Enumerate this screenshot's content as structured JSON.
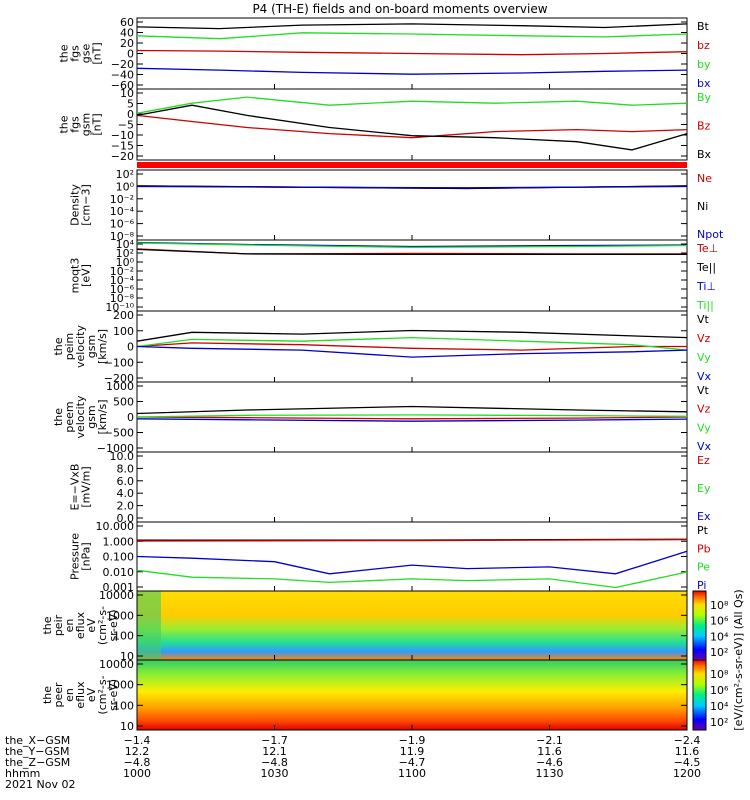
{
  "title": "P4 (TH-E) fields and on-board moments overview",
  "date": "2021 Nov 02",
  "colors": {
    "black": "#000000",
    "red": "#cc0000",
    "green": "#22dd22",
    "blue": "#0000cc"
  },
  "chart_data": [
    {
      "type": "line",
      "id": "p1",
      "ylabel": [
        "the",
        "fgs",
        "gse",
        "[nT]"
      ],
      "ylim": [
        -60,
        60
      ],
      "yticks": [
        "60",
        "40",
        "20",
        "0",
        "−20",
        "−40",
        "−60"
      ],
      "series": [
        {
          "name": "Bt",
          "color": "black",
          "x": [
            0,
            0.15,
            0.3,
            0.5,
            0.7,
            0.85,
            1
          ],
          "values": [
            45,
            42,
            48,
            50,
            47,
            44,
            50
          ]
        },
        {
          "name": "bz",
          "color": "red",
          "x": [
            0,
            0.15,
            0.3,
            0.5,
            0.7,
            0.85,
            1
          ],
          "values": [
            5,
            4,
            2,
            0,
            -2,
            0,
            3
          ]
        },
        {
          "name": "by",
          "color": "green",
          "x": [
            0,
            0.15,
            0.3,
            0.5,
            0.7,
            0.85,
            1
          ],
          "values": [
            30,
            25,
            35,
            33,
            30,
            28,
            33
          ]
        },
        {
          "name": "bx",
          "color": "blue",
          "x": [
            0,
            0.15,
            0.3,
            0.5,
            0.7,
            0.85,
            1
          ],
          "values": [
            -25,
            -28,
            -32,
            -35,
            -33,
            -30,
            -28
          ]
        }
      ]
    },
    {
      "type": "line",
      "id": "p2",
      "ylabel": [
        "the",
        "fgs",
        "gsm",
        "[nT]"
      ],
      "ylim": [
        -25,
        10
      ],
      "yticks": [
        "10",
        "5",
        "0",
        "−5",
        "−10",
        "−15",
        "−20"
      ],
      "series": [
        {
          "name": "By",
          "color": "green",
          "x": [
            0,
            0.1,
            0.2,
            0.35,
            0.5,
            0.65,
            0.8,
            0.9,
            1
          ],
          "values": [
            -2,
            3,
            6,
            2,
            4,
            3,
            4,
            2,
            3
          ]
        },
        {
          "name": "Bz",
          "color": "red",
          "x": [
            0,
            0.1,
            0.2,
            0.35,
            0.5,
            0.65,
            0.8,
            0.9,
            1
          ],
          "values": [
            -3,
            -6,
            -9,
            -12,
            -14,
            -11,
            -10,
            -11,
            -10
          ]
        },
        {
          "name": "Bx",
          "color": "black",
          "x": [
            0,
            0.1,
            0.2,
            0.35,
            0.5,
            0.65,
            0.8,
            0.9,
            1
          ],
          "values": [
            -3,
            2,
            -3,
            -9,
            -13,
            -14,
            -16,
            -20,
            -12
          ]
        }
      ]
    },
    {
      "type": "line",
      "id": "p3",
      "ylabel": [
        "Density",
        "[cm−3]"
      ],
      "log": true,
      "ylim": [
        -8,
        3
      ],
      "yticks": [
        "10²",
        "10⁰",
        "10⁻²",
        "10⁻⁴",
        "10⁻⁶",
        "10⁻⁸"
      ],
      "series": [
        {
          "name": "Ne",
          "color": "red",
          "x": [
            0,
            0.3,
            0.6,
            1
          ],
          "values": [
            0.5,
            0.3,
            0.1,
            0.5
          ]
        },
        {
          "name": "Ni",
          "color": "black",
          "x": [
            0,
            0.3,
            0.6,
            1
          ],
          "values": [
            0.5,
            0.3,
            0.1,
            0.5
          ]
        },
        {
          "name": "Npot",
          "color": "blue",
          "x": [
            0,
            0.3,
            0.6,
            1
          ],
          "values": [
            0.4,
            0.3,
            0.2,
            0.4
          ]
        }
      ]
    },
    {
      "type": "line",
      "id": "p4",
      "ylabel": [
        "moqt3",
        "[eV]"
      ],
      "log": true,
      "ylim": [
        -10,
        4.3
      ],
      "yticks": [
        "10⁴",
        "10²",
        "10⁰",
        "10⁻²",
        "10⁻⁴",
        "10⁻⁶",
        "10⁻⁸",
        "10⁻¹⁰"
      ],
      "series": [
        {
          "name": "Te⊥",
          "color": "red",
          "x": [
            0,
            0.2,
            0.5,
            0.8,
            1
          ],
          "values": [
            2.5,
            1.5,
            1.6,
            1.5,
            1.5
          ]
        },
        {
          "name": "Te||",
          "color": "black",
          "x": [
            0,
            0.2,
            0.5,
            0.8,
            1
          ],
          "values": [
            2.4,
            1.5,
            1.4,
            1.4,
            1.4
          ]
        },
        {
          "name": "Ti⊥",
          "color": "blue",
          "x": [
            0,
            0.2,
            0.5,
            0.8,
            1
          ],
          "values": [
            3.8,
            3.4,
            3.0,
            3.2,
            3.3
          ]
        },
        {
          "name": "Ti||",
          "color": "green",
          "x": [
            0,
            0.2,
            0.5,
            0.8,
            1
          ],
          "values": [
            3.7,
            3.3,
            2.8,
            3.0,
            3.2
          ]
        }
      ]
    },
    {
      "type": "line",
      "id": "p5",
      "ylabel": [
        "the",
        "peim",
        "velocity",
        "gsm",
        "[km/s]"
      ],
      "ylim": [
        -200,
        200
      ],
      "yticks": [
        "200",
        "100",
        "0",
        "−100",
        "−200"
      ],
      "series": [
        {
          "name": "Vt",
          "color": "black",
          "x": [
            0,
            0.1,
            0.3,
            0.5,
            0.7,
            0.9,
            1
          ],
          "values": [
            30,
            80,
            70,
            90,
            80,
            60,
            50
          ]
        },
        {
          "name": "Vz",
          "color": "red",
          "x": [
            0,
            0.1,
            0.3,
            0.5,
            0.7,
            0.9,
            1
          ],
          "values": [
            0,
            20,
            10,
            -10,
            -20,
            0,
            0
          ]
        },
        {
          "name": "Vy",
          "color": "green",
          "x": [
            0,
            0.1,
            0.3,
            0.5,
            0.7,
            0.9,
            1
          ],
          "values": [
            0,
            40,
            30,
            50,
            30,
            10,
            -20
          ]
        },
        {
          "name": "Vx",
          "color": "blue",
          "x": [
            0,
            0.1,
            0.3,
            0.5,
            0.7,
            0.9,
            1
          ],
          "values": [
            0,
            -10,
            -20,
            -60,
            -40,
            -30,
            -20
          ]
        }
      ]
    },
    {
      "type": "line",
      "id": "p6",
      "ylabel": [
        "the",
        "peem",
        "velocity",
        "gsm",
        "[km/s]"
      ],
      "ylim": [
        -1000,
        1000
      ],
      "yticks": [
        "1000",
        "500",
        "0",
        "−500",
        "−1000"
      ],
      "series": [
        {
          "name": "Vt",
          "color": "black",
          "x": [
            0,
            0.2,
            0.5,
            0.8,
            1
          ],
          "values": [
            100,
            200,
            300,
            200,
            150
          ]
        },
        {
          "name": "Vz",
          "color": "red",
          "x": [
            0,
            0.2,
            0.5,
            0.8,
            1
          ],
          "values": [
            0,
            -20,
            -50,
            -30,
            0
          ]
        },
        {
          "name": "Vy",
          "color": "green",
          "x": [
            0,
            0.2,
            0.5,
            0.8,
            1
          ],
          "values": [
            0,
            50,
            60,
            40,
            20
          ]
        },
        {
          "name": "Vx",
          "color": "blue",
          "x": [
            0,
            0.2,
            0.5,
            0.8,
            1
          ],
          "values": [
            -50,
            -80,
            -120,
            -90,
            -60
          ]
        }
      ]
    },
    {
      "type": "line",
      "id": "p7",
      "ylabel": [
        "E=−VxB",
        "[mV/m]"
      ],
      "ylim": [
        0,
        10
      ],
      "yticks": [
        "10.0",
        "8.0",
        "6.0",
        "4.0",
        "2.0",
        "0.0"
      ],
      "series": [
        {
          "name": "Ez",
          "color": "red",
          "x": [],
          "values": []
        },
        {
          "name": "Ey",
          "color": "green",
          "x": [],
          "values": []
        },
        {
          "name": "Ex",
          "color": "blue",
          "x": [],
          "values": []
        }
      ]
    },
    {
      "type": "line",
      "id": "p8",
      "ylabel": [
        "Pressure",
        "[nPa]"
      ],
      "log": true,
      "ylim": [
        -3,
        1
      ],
      "yticks": [
        "10.000",
        "1.000",
        "0.100",
        "0.010",
        "0.001"
      ],
      "series": [
        {
          "name": "Pt",
          "color": "black",
          "x": [
            0,
            0.5,
            1
          ],
          "values": [
            -0.05,
            -0.05,
            0.0
          ]
        },
        {
          "name": "Pb",
          "color": "red",
          "x": [
            0,
            0.5,
            1
          ],
          "values": [
            -0.1,
            -0.08,
            -0.02
          ]
        },
        {
          "name": "Pe",
          "color": "green",
          "x": [
            0,
            0.1,
            0.25,
            0.35,
            0.5,
            0.6,
            0.75,
            0.87,
            1
          ],
          "values": [
            -1.8,
            -2.2,
            -2.3,
            -2.5,
            -2.3,
            -2.4,
            -2.3,
            -2.8,
            -1.9
          ]
        },
        {
          "name": "Pi",
          "color": "blue",
          "x": [
            0,
            0.1,
            0.25,
            0.35,
            0.5,
            0.6,
            0.75,
            0.87,
            1
          ],
          "values": [
            -1.0,
            -1.1,
            -1.3,
            -2.0,
            -1.5,
            -1.7,
            -1.6,
            -2.0,
            -0.7
          ]
        }
      ]
    },
    {
      "type": "heatmap",
      "id": "p9",
      "ylabel": [
        "the",
        "peir",
        "en",
        "eflux",
        "eV",
        "(cm²-s-",
        "sr-eV)"
      ],
      "yticks": [
        "10000",
        "1000",
        "100",
        "10"
      ]
    },
    {
      "type": "heatmap",
      "id": "p10",
      "ylabel": [
        "the",
        "peer",
        "en",
        "eflux",
        "eV",
        "(cm²-s-",
        "sr-eV)"
      ],
      "yticks": [
        "10000",
        "1000",
        "100",
        "10"
      ]
    }
  ],
  "colorbar": {
    "label": "[eV/(cm²-s-sr-eV)] (All Qs)",
    "ticks": [
      "10⁸",
      "10⁶",
      "10⁴",
      "10²"
    ]
  },
  "x_axis": {
    "rows": [
      {
        "label": "the_X−GSM",
        "values": [
          "−1.4",
          "−1.7",
          "−1.9",
          "−2.1",
          "−2.4"
        ]
      },
      {
        "label": "the_Y−GSM",
        "values": [
          "12.2",
          "12.1",
          "11.9",
          "11.6",
          "11.6"
        ]
      },
      {
        "label": "the_Z−GSM",
        "values": [
          "−4.8",
          "−4.8",
          "−4.7",
          "−4.6",
          "−4.5"
        ]
      },
      {
        "label": "hhmm",
        "values": [
          "1000",
          "1030",
          "1100",
          "1130",
          "1200"
        ]
      }
    ]
  }
}
